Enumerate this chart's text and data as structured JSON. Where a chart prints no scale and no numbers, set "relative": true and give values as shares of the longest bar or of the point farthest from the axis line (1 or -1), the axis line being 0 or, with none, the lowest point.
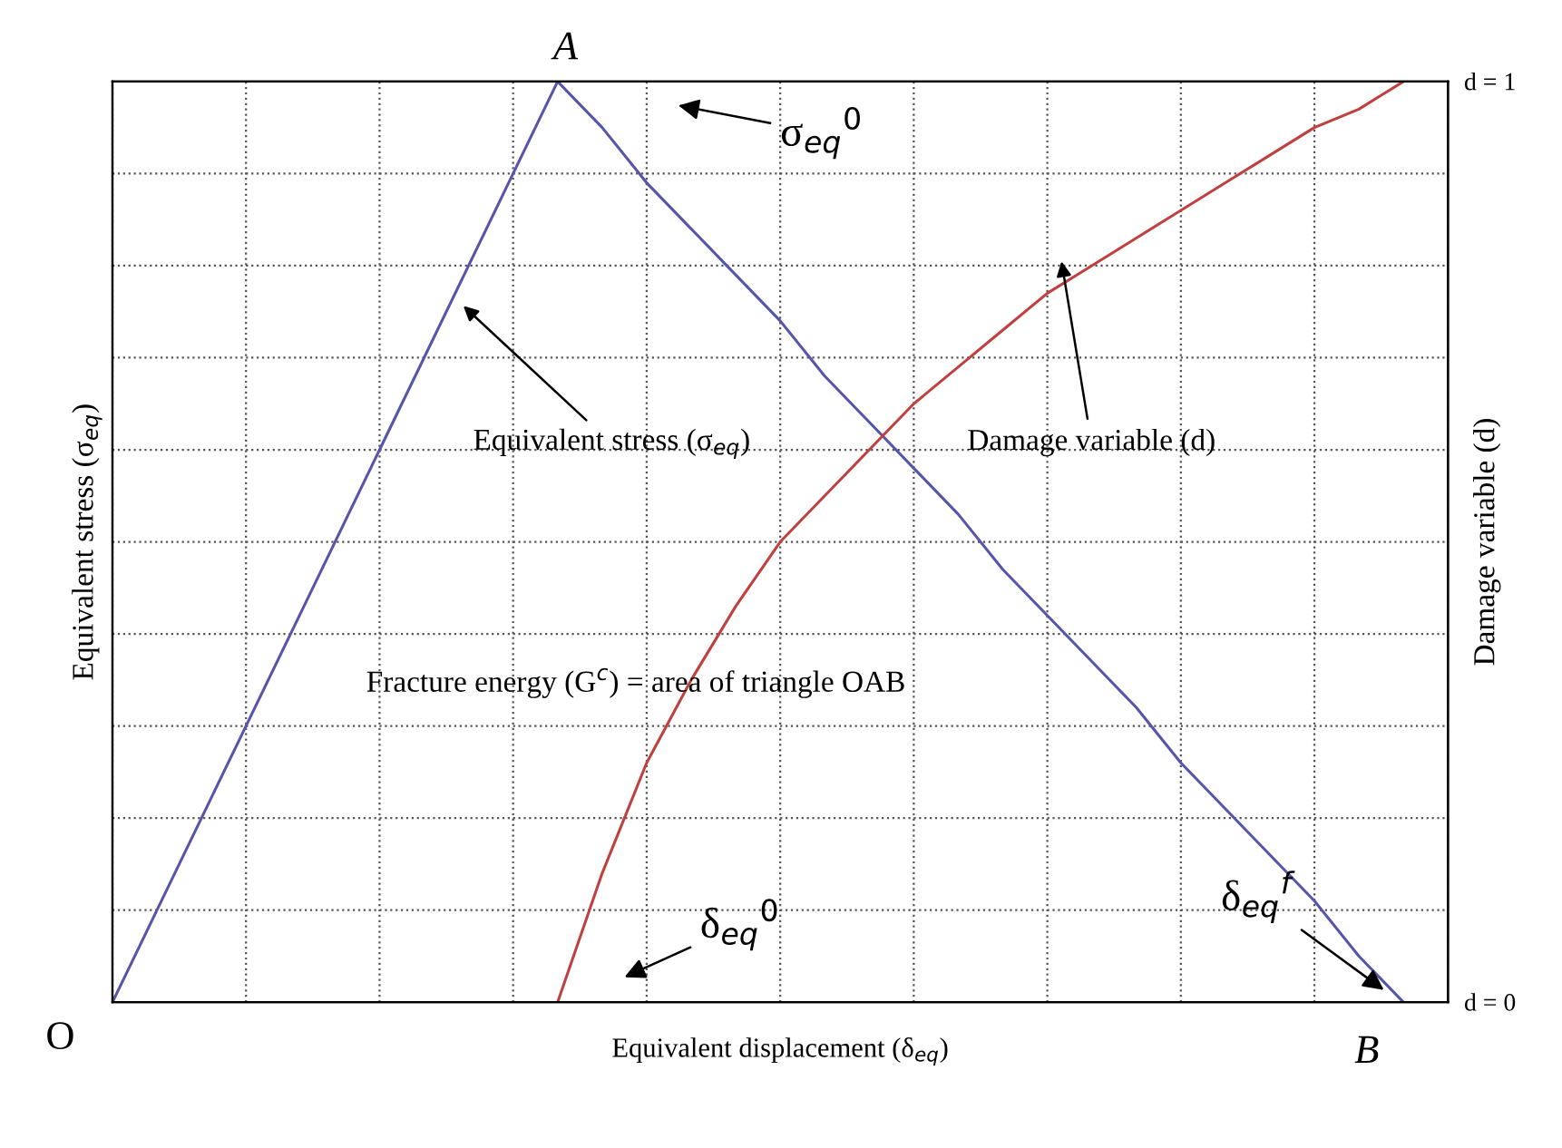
{
  "chart_data": {
    "type": "line",
    "relative": true,
    "xlabel": "Equivalent displacement (δ$_{eq}$)",
    "ylabel": "Equivalent stress (σ$_{eq}$)",
    "y2label": "Damage variable (d)",
    "categories": [
      null,
      null,
      null,
      null,
      null,
      null,
      null,
      null,
      null,
      null,
      null,
      null,
      null,
      null,
      null,
      null,
      null,
      null,
      null,
      null,
      null,
      null,
      null,
      null,
      null,
      null,
      null,
      null,
      null,
      null,
      null
    ],
    "series": [
      {
        "color": "#5555aa",
        "values": [
          0,
          0.1,
          0.2,
          0.3,
          0.4,
          0.5,
          0.6,
          0.7,
          0.8,
          0.9,
          1,
          0.95,
          0.89,
          0.84,
          0.79,
          0.74,
          0.68,
          0.63,
          0.58,
          0.53,
          0.47,
          0.42,
          0.37,
          0.32,
          0.26,
          0.21,
          0.16,
          0.11,
          0.05,
          0,
          null
        ]
      },
      {
        "color": "#c04040",
        "values": [
          null,
          null,
          null,
          null,
          null,
          null,
          null,
          null,
          null,
          null,
          0,
          0.14,
          0.26,
          0.35,
          0.43,
          0.5,
          0.55,
          0.6,
          0.65,
          0.69,
          0.73,
          0.77,
          0.8,
          0.83,
          0.86,
          0.89,
          0.92,
          0.95,
          0.97,
          1,
          null
        ]
      }
    ],
    "tick_labels": false,
    "grid": true,
    "line_style": "solid",
    "marker": "none",
    "annotations": [
      "A",
      "σ$_{eq}$$^{0}$",
      "Equivalent stress (σ$_{eq}$)",
      "Damage variable (d)",
      "Fracture energy (G$^{c}$) = area of triangle OAB",
      "δ$_{eq}$$^{0}$",
      "δ$_{eq}$$^{f}$",
      "O",
      "B",
      "d = 1",
      "d = 0"
    ]
  }
}
